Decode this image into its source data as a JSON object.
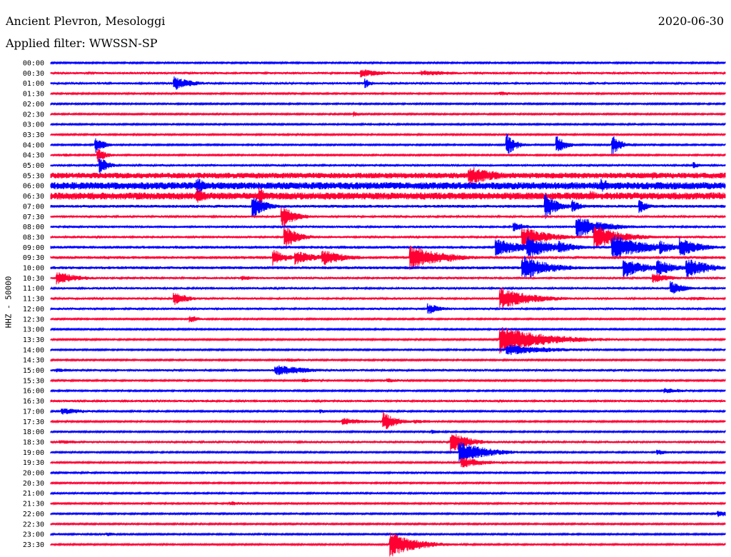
{
  "header": {
    "station": "Ancient Plevron, Mesologgi",
    "filter_label": "Applied filter: WWSSN-SP",
    "date": "2020-06-30"
  },
  "chart_data": {
    "type": "line",
    "title": "Ancient Plevron, Mesologgi",
    "subtitle": "Applied filter: WWSSN-SP",
    "date": "2020-06-30",
    "ylabel": "HHZ - 50000",
    "ytick_labels": [
      "00:00",
      "00:30",
      "01:00",
      "01:30",
      "02:00",
      "02:30",
      "03:00",
      "03:30",
      "04:00",
      "04:30",
      "05:00",
      "05:30",
      "06:00",
      "06:30",
      "07:00",
      "07:30",
      "08:00",
      "08:30",
      "09:00",
      "09:30",
      "10:00",
      "10:30",
      "11:00",
      "11:30",
      "12:00",
      "12:30",
      "13:00",
      "13:30",
      "14:00",
      "14:30",
      "15:00",
      "15:30",
      "16:00",
      "16:30",
      "17:00",
      "17:30",
      "18:00",
      "18:30",
      "19:00",
      "19:30",
      "20:00",
      "20:30",
      "21:00",
      "21:30",
      "22:00",
      "22:30",
      "23:00",
      "23:30"
    ],
    "x_unit": "minutes after row start",
    "xlim": [
      0,
      30
    ],
    "line_colors": [
      "#0000ff",
      "#ff0033"
    ],
    "noise_levels": [
      1,
      1.5,
      1.5,
      1,
      1,
      1,
      1,
      1,
      1,
      1,
      1.5,
      4,
      5,
      5,
      2,
      1.5,
      1.5,
      1.5,
      2,
      2,
      2,
      1.5,
      1.5,
      1.5,
      1.5,
      1,
      1,
      1,
      1,
      1,
      1.5,
      1,
      1,
      1.5,
      1,
      1,
      1,
      1.5,
      1,
      1,
      1,
      1,
      1,
      1,
      1,
      1,
      1,
      1
    ],
    "events": [
      {
        "row": 1,
        "t": 13.8,
        "amp": 6,
        "dur": 1.2
      },
      {
        "row": 1,
        "t": 16.5,
        "amp": 4,
        "dur": 2
      },
      {
        "row": 2,
        "t": 5.5,
        "amp": 10,
        "dur": 0.8
      },
      {
        "row": 2,
        "t": 14.0,
        "amp": 7,
        "dur": 0.3
      },
      {
        "row": 3,
        "t": 20.0,
        "amp": 3,
        "dur": 1
      },
      {
        "row": 3,
        "t": 26.5,
        "amp": 2,
        "dur": 1
      },
      {
        "row": 5,
        "t": 13.5,
        "amp": 4,
        "dur": 0.2
      },
      {
        "row": 8,
        "t": 2.0,
        "amp": 12,
        "dur": 0.4
      },
      {
        "row": 8,
        "t": 20.3,
        "amp": 16,
        "dur": 0.4
      },
      {
        "row": 8,
        "t": 22.5,
        "amp": 14,
        "dur": 0.4
      },
      {
        "row": 8,
        "t": 25.0,
        "amp": 14,
        "dur": 0.4
      },
      {
        "row": 9,
        "t": 0.6,
        "amp": 3,
        "dur": 0.3
      },
      {
        "row": 9,
        "t": 2.1,
        "amp": 10,
        "dur": 0.4
      },
      {
        "row": 10,
        "t": 2.2,
        "amp": 12,
        "dur": 0.4
      },
      {
        "row": 10,
        "t": 28.6,
        "amp": 5,
        "dur": 0.3
      },
      {
        "row": 11,
        "t": 18.6,
        "amp": 14,
        "dur": 1.3
      },
      {
        "row": 11,
        "t": 26.8,
        "amp": 6,
        "dur": 0.4
      },
      {
        "row": 12,
        "t": 6.5,
        "amp": 14,
        "dur": 0.4
      },
      {
        "row": 12,
        "t": 24.5,
        "amp": 11,
        "dur": 0.5
      },
      {
        "row": 13,
        "t": 6.5,
        "amp": 12,
        "dur": 0.6
      },
      {
        "row": 13,
        "t": 9.3,
        "amp": 12,
        "dur": 0.4
      },
      {
        "row": 13,
        "t": 24.0,
        "amp": 8,
        "dur": 0.6
      },
      {
        "row": 14,
        "t": 9.0,
        "amp": 16,
        "dur": 0.6
      },
      {
        "row": 14,
        "t": 22.0,
        "amp": 18,
        "dur": 0.6
      },
      {
        "row": 14,
        "t": 23.2,
        "amp": 10,
        "dur": 0.4
      },
      {
        "row": 14,
        "t": 26.2,
        "amp": 10,
        "dur": 0.4
      },
      {
        "row": 15,
        "t": 10.3,
        "amp": 16,
        "dur": 0.6
      },
      {
        "row": 16,
        "t": 20.6,
        "amp": 7,
        "dur": 0.6
      },
      {
        "row": 16,
        "t": 23.4,
        "amp": 16,
        "dur": 1.2
      },
      {
        "row": 17,
        "t": 10.4,
        "amp": 18,
        "dur": 0.6
      },
      {
        "row": 17,
        "t": 21.0,
        "amp": 15,
        "dur": 1.2
      },
      {
        "row": 17,
        "t": 24.2,
        "amp": 18,
        "dur": 1.2
      },
      {
        "row": 18,
        "t": 19.8,
        "amp": 12,
        "dur": 1.5
      },
      {
        "row": 18,
        "t": 21.2,
        "amp": 16,
        "dur": 1.2
      },
      {
        "row": 18,
        "t": 22.6,
        "amp": 10,
        "dur": 0.8
      },
      {
        "row": 18,
        "t": 25.0,
        "amp": 18,
        "dur": 1.5
      },
      {
        "row": 18,
        "t": 27.1,
        "amp": 10,
        "dur": 0.8
      },
      {
        "row": 18,
        "t": 28.0,
        "amp": 14,
        "dur": 0.9
      },
      {
        "row": 19,
        "t": 9.9,
        "amp": 12,
        "dur": 0.6
      },
      {
        "row": 19,
        "t": 10.9,
        "amp": 10,
        "dur": 1
      },
      {
        "row": 19,
        "t": 12.1,
        "amp": 12,
        "dur": 1
      },
      {
        "row": 19,
        "t": 16.0,
        "amp": 18,
        "dur": 1.4
      },
      {
        "row": 19,
        "t": 17.8,
        "amp": 6,
        "dur": 0.8
      },
      {
        "row": 20,
        "t": 21.0,
        "amp": 18,
        "dur": 1.2
      },
      {
        "row": 20,
        "t": 25.5,
        "amp": 14,
        "dur": 1
      },
      {
        "row": 20,
        "t": 27.0,
        "amp": 12,
        "dur": 0.8
      },
      {
        "row": 20,
        "t": 28.3,
        "amp": 14,
        "dur": 1
      },
      {
        "row": 20,
        "t": 29.0,
        "amp": 8,
        "dur": 0.8
      },
      {
        "row": 21,
        "t": 0.3,
        "amp": 9,
        "dur": 1
      },
      {
        "row": 21,
        "t": 8.5,
        "amp": 4,
        "dur": 0.6
      },
      {
        "row": 21,
        "t": 26.8,
        "amp": 8,
        "dur": 0.8
      },
      {
        "row": 22,
        "t": 27.6,
        "amp": 10,
        "dur": 0.6
      },
      {
        "row": 23,
        "t": 5.5,
        "amp": 10,
        "dur": 0.6
      },
      {
        "row": 23,
        "t": 20.0,
        "amp": 16,
        "dur": 1.4
      },
      {
        "row": 23,
        "t": 28.5,
        "amp": 3,
        "dur": 1.2
      },
      {
        "row": 24,
        "t": 16.8,
        "amp": 8,
        "dur": 0.6
      },
      {
        "row": 25,
        "t": 6.2,
        "amp": 6,
        "dur": 0.4
      },
      {
        "row": 27,
        "t": 20.0,
        "amp": 20,
        "dur": 2
      },
      {
        "row": 28,
        "t": 20.3,
        "amp": 8,
        "dur": 2
      },
      {
        "row": 29,
        "t": 10.5,
        "amp": 3,
        "dur": 1.2
      },
      {
        "row": 30,
        "t": 0.3,
        "amp": 3,
        "dur": 1
      },
      {
        "row": 30,
        "t": 10.0,
        "amp": 8,
        "dur": 1.5
      },
      {
        "row": 30,
        "t": 25.0,
        "amp": 2,
        "dur": 0.6
      },
      {
        "row": 31,
        "t": 11.2,
        "amp": 3,
        "dur": 1
      },
      {
        "row": 31,
        "t": 15.0,
        "amp": 3,
        "dur": 1
      },
      {
        "row": 32,
        "t": 27.3,
        "amp": 4,
        "dur": 1.2
      },
      {
        "row": 34,
        "t": 0.5,
        "amp": 5,
        "dur": 1.2
      },
      {
        "row": 34,
        "t": 12.0,
        "amp": 3,
        "dur": 0.5
      },
      {
        "row": 35,
        "t": 13.0,
        "amp": 5,
        "dur": 1.2
      },
      {
        "row": 35,
        "t": 14.8,
        "amp": 14,
        "dur": 0.6
      },
      {
        "row": 35,
        "t": 16.2,
        "amp": 3,
        "dur": 1.2
      },
      {
        "row": 36,
        "t": 17.0,
        "amp": 3,
        "dur": 0.6
      },
      {
        "row": 37,
        "t": 0.4,
        "amp": 3,
        "dur": 1.5
      },
      {
        "row": 37,
        "t": 17.8,
        "amp": 16,
        "dur": 0.8
      },
      {
        "row": 38,
        "t": 18.2,
        "amp": 16,
        "dur": 1.2
      },
      {
        "row": 38,
        "t": 27.0,
        "amp": 4,
        "dur": 0.6
      },
      {
        "row": 39,
        "t": 18.3,
        "amp": 8,
        "dur": 1
      },
      {
        "row": 43,
        "t": 8.0,
        "amp": 3,
        "dur": 1
      },
      {
        "row": 44,
        "t": 29.7,
        "amp": 5,
        "dur": 0.6
      },
      {
        "row": 46,
        "t": 2.5,
        "amp": 3,
        "dur": 0.5
      },
      {
        "row": 47,
        "t": 15.1,
        "amp": 18,
        "dur": 1.2
      }
    ]
  }
}
